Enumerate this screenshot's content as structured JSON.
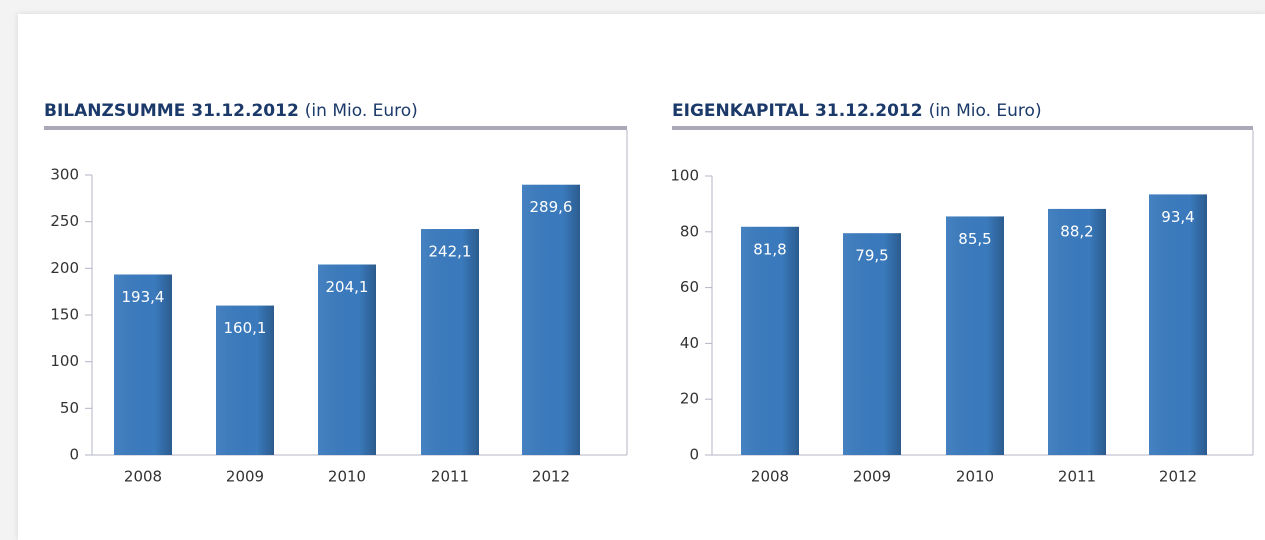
{
  "chart_data": [
    {
      "type": "bar",
      "title": "BILANZSUMME 31.12.2012",
      "subtitle": "(in Mio. Euro)",
      "categories": [
        "2008",
        "2009",
        "2010",
        "2011",
        "2012"
      ],
      "values": [
        193.4,
        160.1,
        204.1,
        242.1,
        289.6
      ],
      "value_labels": [
        "193,4",
        "160,1",
        "204,1",
        "242,1",
        "289,6"
      ],
      "color": "#3a7abd",
      "ylim": [
        0,
        300
      ],
      "yticks": [
        0,
        50,
        100,
        150,
        200,
        250,
        300
      ]
    },
    {
      "type": "bar",
      "title": "EIGENKAPITAL 31.12.2012",
      "subtitle": "(in Mio. Euro)",
      "categories": [
        "2008",
        "2009",
        "2010",
        "2011",
        "2012"
      ],
      "values": [
        81.8,
        79.5,
        85.5,
        88.2,
        93.4
      ],
      "value_labels": [
        "81,8",
        "79,5",
        "85,5",
        "88,2",
        "93,4"
      ],
      "color": "#3a7abd",
      "ylim": [
        0,
        100
      ],
      "yticks": [
        0,
        20,
        40,
        60,
        80,
        100
      ]
    }
  ]
}
